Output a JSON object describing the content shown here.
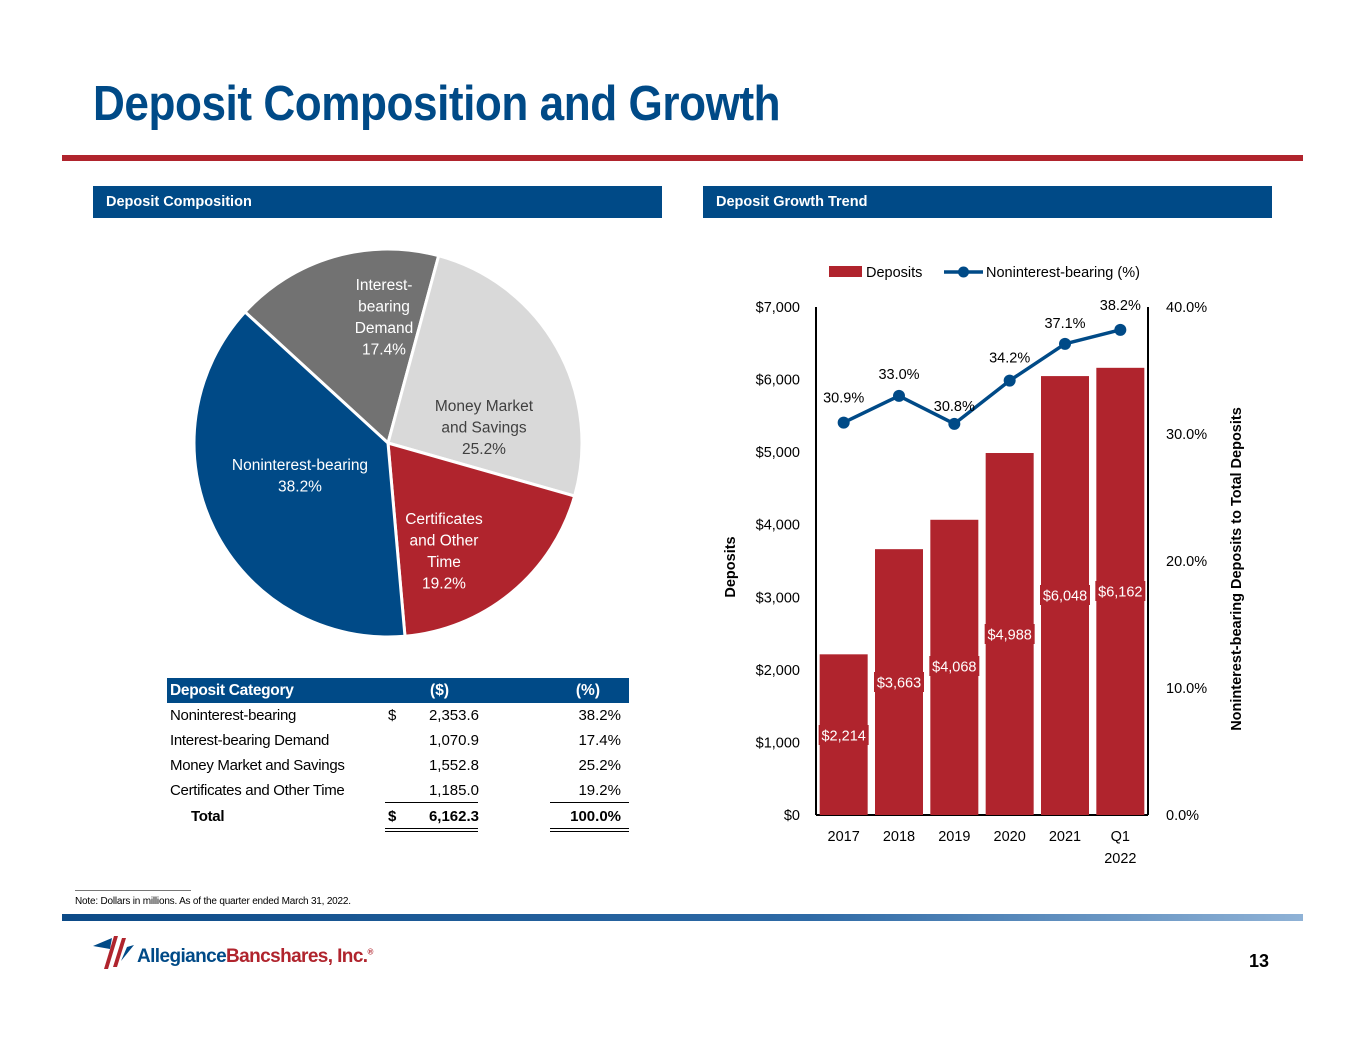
{
  "title": "Deposit Composition and Growth",
  "sections": {
    "left": "Deposit Composition",
    "right": "Deposit Growth Trend"
  },
  "pie": {
    "slices": [
      {
        "name": "Interest-bearing Demand",
        "label_lines": [
          "Interest-",
          "bearing",
          "Demand",
          "17.4%"
        ],
        "value": 17.4,
        "color": "#727272",
        "text_color": "#ffffff"
      },
      {
        "name": "Money Market and Savings",
        "label_lines": [
          "Money Market",
          "and Savings",
          "25.2%"
        ],
        "value": 25.2,
        "color": "#d9d9d9",
        "text_color": "#404040"
      },
      {
        "name": "Certificates and Other Time",
        "label_lines": [
          "Certificates",
          "and Other",
          "Time",
          "19.2%"
        ],
        "value": 19.2,
        "color": "#b0242d",
        "text_color": "#ffffff"
      },
      {
        "name": "Noninterest-bearing",
        "label_lines": [
          "Noninterest-bearing",
          "38.2%"
        ],
        "value": 38.2,
        "color": "#004a87",
        "text_color": "#ffffff"
      }
    ]
  },
  "table": {
    "headers": [
      "Deposit Category",
      "($)",
      "(%)"
    ],
    "rows": [
      {
        "category": "Noninterest-bearing",
        "dollar_sign": "$",
        "amount": "2,353.6",
        "pct": "38.2%"
      },
      {
        "category": "Interest-bearing Demand",
        "dollar_sign": "",
        "amount": "1,070.9",
        "pct": "17.4%"
      },
      {
        "category": "Money Market and Savings",
        "dollar_sign": "",
        "amount": "1,552.8",
        "pct": "25.2%"
      },
      {
        "category": "Certificates and Other Time",
        "dollar_sign": "",
        "amount": "1,185.0",
        "pct": "19.2%"
      }
    ],
    "total": {
      "category": "Total",
      "dollar_sign": "$",
      "amount": "6,162.3",
      "pct": "100.0%"
    }
  },
  "chart_data": {
    "type": "bar",
    "categories": [
      [
        "2017"
      ],
      [
        "2018"
      ],
      [
        "2019"
      ],
      [
        "2020"
      ],
      [
        "2021"
      ],
      [
        "Q1",
        "2022"
      ]
    ],
    "series": [
      {
        "name": "Deposits",
        "type": "bar",
        "axis": "left",
        "values": [
          2214,
          3663,
          4068,
          4988,
          6048,
          6162
        ],
        "labels": [
          "$2,214",
          "$3,663",
          "$4,068",
          "$4,988",
          "$6,048",
          "$6,162"
        ],
        "color": "#b0242d"
      },
      {
        "name": "Noninterest-bearing (%)",
        "type": "line",
        "axis": "right",
        "values": [
          30.9,
          33.0,
          30.8,
          34.2,
          37.1,
          38.2
        ],
        "labels": [
          "30.9%",
          "33.0%",
          "30.8%",
          "34.2%",
          "37.1%",
          "38.2%"
        ],
        "color": "#004a87"
      }
    ],
    "ylabel": "Deposits",
    "y2label": "Noninterest-bearing Deposits to Total Deposits",
    "ylim": [
      0,
      7000
    ],
    "y2lim": [
      0,
      40
    ],
    "yticks": [
      "$0",
      "$1,000",
      "$2,000",
      "$3,000",
      "$4,000",
      "$5,000",
      "$6,000",
      "$7,000"
    ],
    "y2ticks": [
      "0.0%",
      "10.0%",
      "20.0%",
      "30.0%",
      "40.0%"
    ],
    "legend": "top"
  },
  "note": "Note: Dollars in millions. As of the quarter ended March 31, 2022.",
  "logo": {
    "part1": "Allegiance",
    "part2": "Bancshares, Inc.",
    "mark": "®"
  },
  "page_number": "13"
}
